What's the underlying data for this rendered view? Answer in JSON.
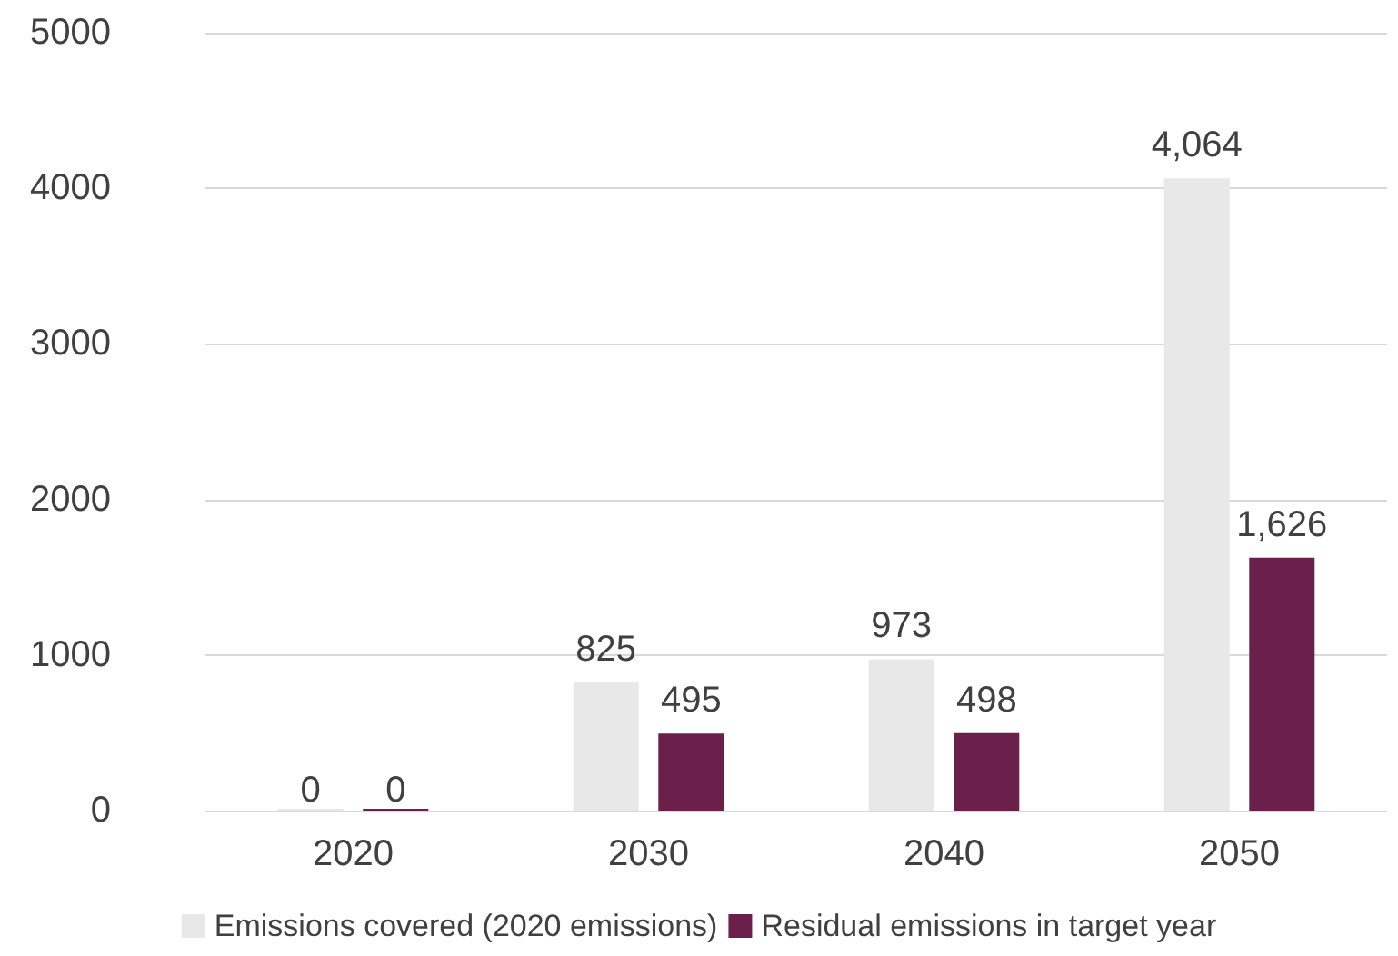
{
  "chart_data": {
    "type": "bar",
    "categories": [
      "2020",
      "2030",
      "2040",
      "2050"
    ],
    "series": [
      {
        "name": "Emissions covered (2020 emissions)",
        "color": "#e8e8e8",
        "values": [
          0,
          825,
          973,
          4064
        ],
        "value_labels": [
          "0",
          "825",
          "973",
          "4,064"
        ]
      },
      {
        "name": "Residual emissions in target year",
        "color": "#6b1f4b",
        "values": [
          0,
          495,
          498,
          1626
        ],
        "value_labels": [
          "0",
          "495",
          "498",
          "1,626"
        ]
      }
    ],
    "ylim": [
      0,
      5000
    ],
    "yticks": [
      0,
      1000,
      2000,
      3000,
      4000,
      5000
    ],
    "grid": "y",
    "legend": "bottom"
  }
}
